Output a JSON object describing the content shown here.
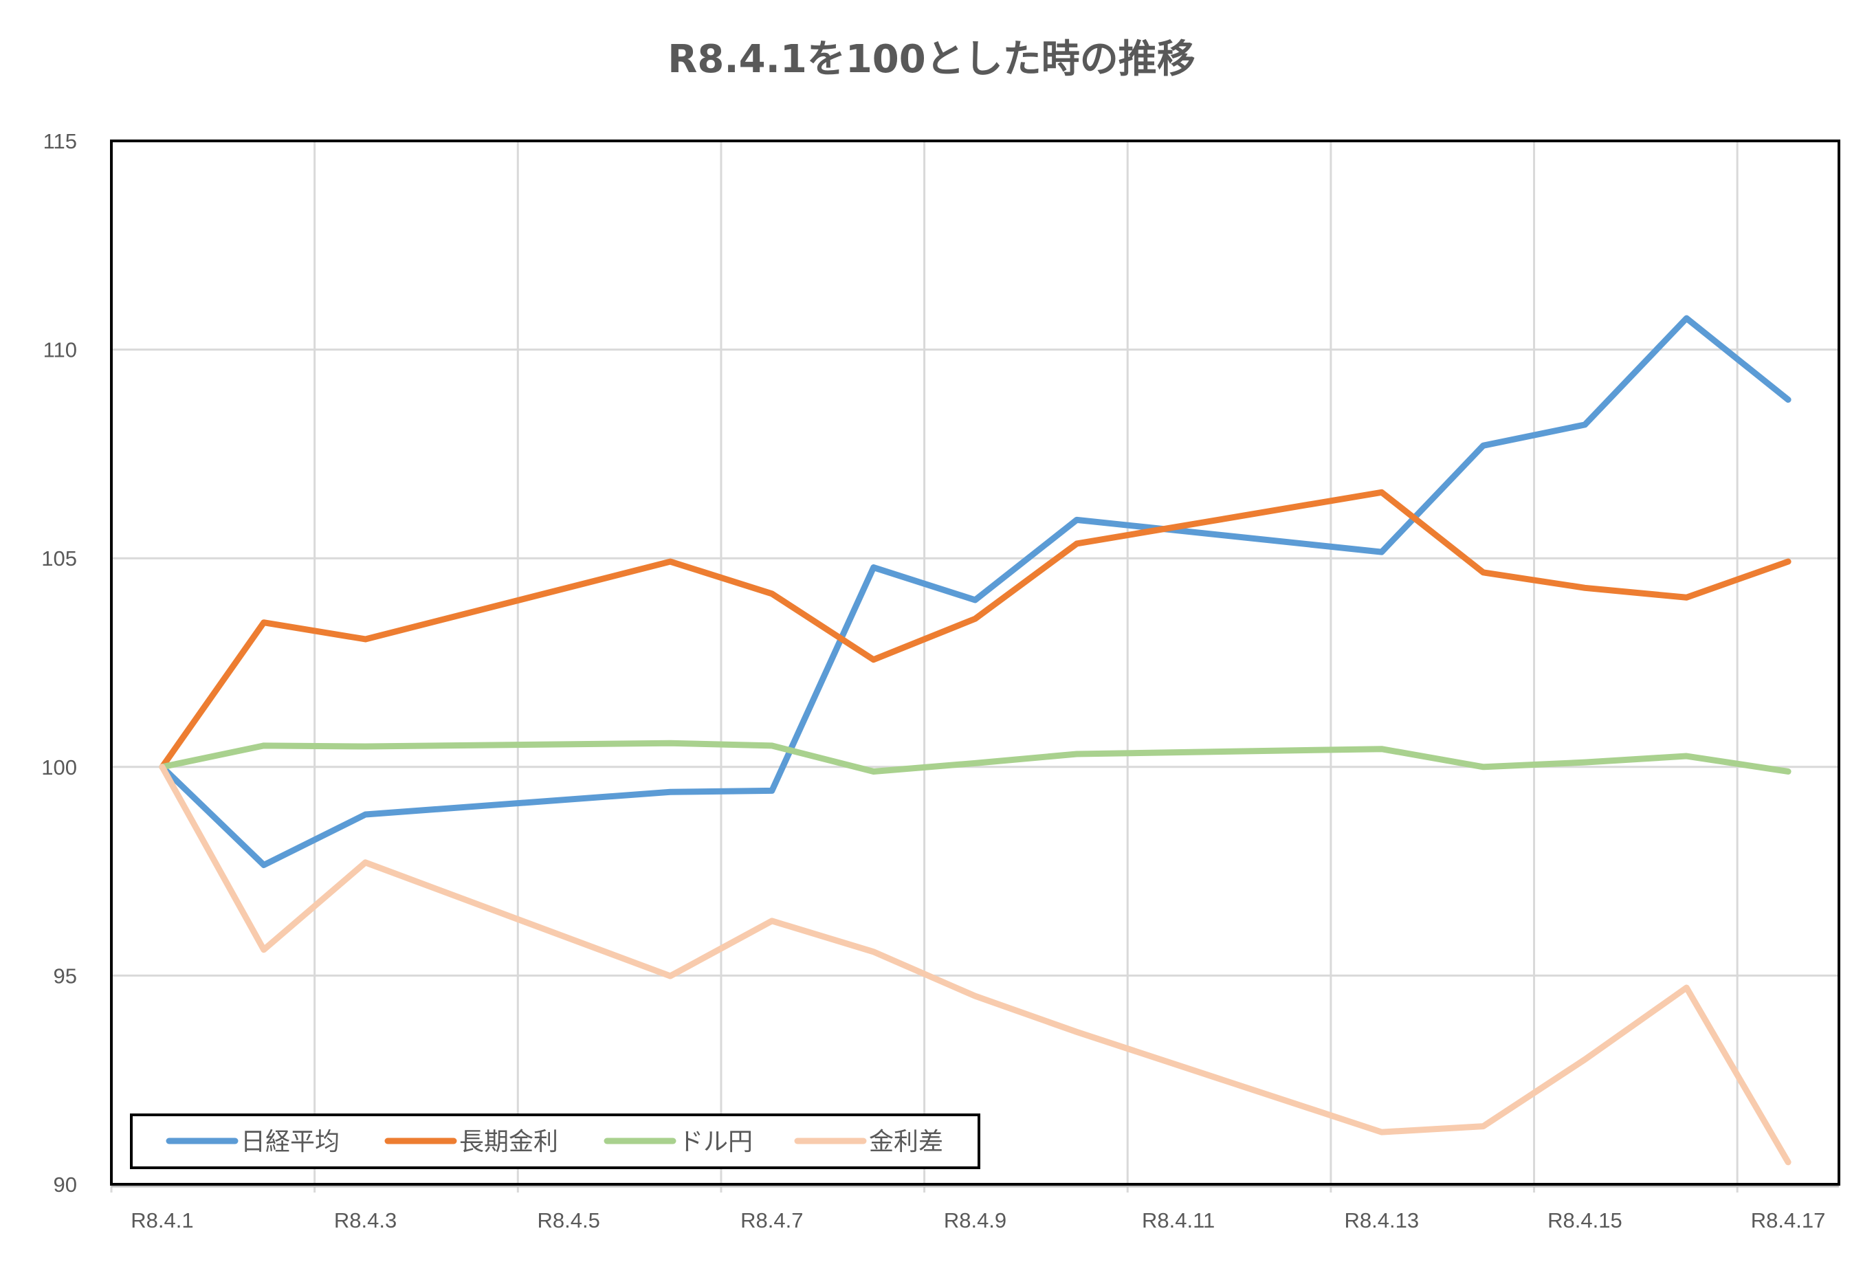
{
  "chart_data": {
    "type": "line",
    "title": "R8.4.1を100とした時の推移",
    "xlabel": "",
    "ylabel": "",
    "ylim": [
      90,
      115
    ],
    "yticks": [
      "90",
      "95",
      "100",
      "105",
      "110",
      "115"
    ],
    "xticks": [
      "R8.4.1",
      "R8.4.3",
      "R8.4.5",
      "R8.4.7",
      "R8.4.9",
      "R8.4.11",
      "R8.4.13",
      "R8.4.15",
      "R8.4.17"
    ],
    "x_days": [
      1,
      2,
      3,
      6,
      7,
      8,
      9,
      10,
      13,
      14,
      15,
      16,
      17
    ],
    "grid": true,
    "legend_position": "bottom-left inside",
    "series": [
      {
        "name": "日経平均",
        "color": "#5b9bd5",
        "values": [
          100,
          97.65,
          98.86,
          99.4,
          99.43,
          104.78,
          104.0,
          105.92,
          105.15,
          107.7,
          108.2,
          110.75,
          108.8
        ]
      },
      {
        "name": "長期金利",
        "color": "#ed7d31",
        "values": [
          100,
          103.46,
          103.06,
          104.92,
          104.15,
          102.57,
          103.55,
          105.35,
          106.58,
          104.66,
          104.29,
          104.06,
          104.92
        ]
      },
      {
        "name": "ドル円",
        "color": "#a9d18e",
        "values": [
          100,
          100.51,
          100.49,
          100.57,
          100.51,
          99.89,
          100.09,
          100.31,
          100.43,
          100.0,
          100.11,
          100.26,
          99.89
        ]
      },
      {
        "name": "金利差",
        "color": "#f8cbad",
        "values": [
          100,
          95.62,
          97.71,
          94.99,
          96.31,
          95.57,
          94.51,
          93.65,
          91.25,
          91.39,
          92.99,
          94.71,
          90.53
        ]
      }
    ]
  }
}
